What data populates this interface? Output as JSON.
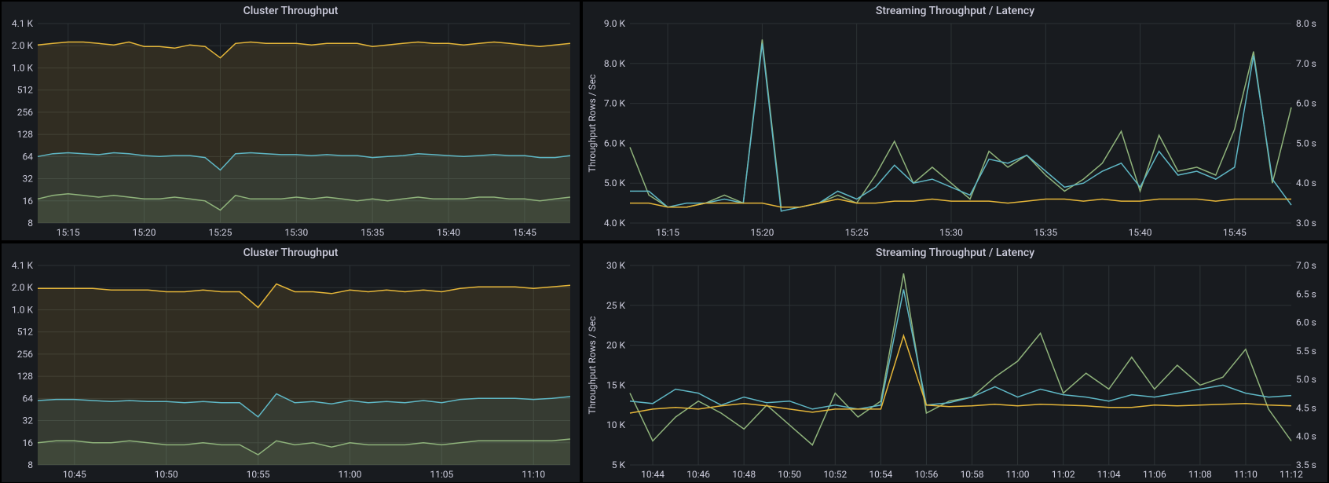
{
  "background": "#181b1f",
  "text_color": "#ccccdc",
  "title_fontsize": 14,
  "axis_fontsize": 12,
  "grid_color": "#2c3235",
  "y2_label": "Throughput Rows / Sec",
  "panels": {
    "cluster_top": {
      "title": "Cluster Throughput",
      "type": "area",
      "yscale": "log",
      "yticks": [
        8,
        16,
        32,
        64,
        128,
        256,
        512,
        1024,
        2048,
        4096
      ],
      "ytick_labels": [
        "8",
        "16",
        "32",
        "64",
        "128",
        "256",
        "512",
        "1.0 K",
        "2.0 K",
        "4.1 K"
      ],
      "xticks": [
        "15:15",
        "15:20",
        "15:25",
        "15:30",
        "15:35",
        "15:40",
        "15:45"
      ],
      "n": 36,
      "x_first_tick_idx": 2,
      "x_tick_stride": 5,
      "series": [
        {
          "color": "#e5b639",
          "fill": "rgba(229,182,57,0.12)",
          "data": [
            2100,
            2200,
            2300,
            2300,
            2200,
            2100,
            2300,
            2000,
            2000,
            1900,
            2100,
            2000,
            1400,
            2200,
            2300,
            2200,
            2200,
            2200,
            2100,
            2200,
            2200,
            2200,
            2000,
            2100,
            2200,
            2300,
            2200,
            2200,
            2100,
            2200,
            2300,
            2200,
            2100,
            2000,
            2100,
            2200
          ]
        },
        {
          "color": "#5fb7c5",
          "fill": "rgba(95,183,197,0.10)",
          "data": [
            64,
            70,
            72,
            70,
            68,
            72,
            70,
            66,
            64,
            66,
            66,
            62,
            42,
            70,
            72,
            70,
            68,
            68,
            66,
            68,
            66,
            66,
            62,
            64,
            66,
            70,
            68,
            66,
            64,
            66,
            68,
            66,
            66,
            62,
            62,
            66
          ]
        },
        {
          "color": "#8fb37b",
          "fill": "rgba(143,179,123,0.10)",
          "data": [
            17,
            19,
            20,
            19,
            18,
            19,
            18,
            17,
            17,
            18,
            17,
            16,
            12,
            19,
            17,
            17,
            17,
            18,
            17,
            18,
            17,
            16,
            17,
            16,
            17,
            18,
            17,
            17,
            17,
            18,
            18,
            17,
            17,
            16,
            17,
            18
          ]
        }
      ]
    },
    "stream_top": {
      "title": "Streaming Throughput / Latency",
      "type": "line",
      "yscale": "linear",
      "ylim": [
        4000,
        9000
      ],
      "yticks": [
        4000,
        5000,
        6000,
        7000,
        8000,
        9000
      ],
      "ytick_labels": [
        "4.0 K",
        "5.0 K",
        "6.0 K",
        "7.0 K",
        "8.0 K",
        "9.0 K"
      ],
      "y2ticks": [
        "3.0 s",
        "4.0 s",
        "5.0 s",
        "6.0 s",
        "7.0 s",
        "8.0 s"
      ],
      "xticks": [
        "15:15",
        "15:20",
        "15:25",
        "15:30",
        "15:35",
        "15:40",
        "15:45"
      ],
      "n": 36,
      "x_first_tick_idx": 2,
      "x_tick_stride": 5,
      "series": [
        {
          "color": "#8fb37b",
          "data": [
            5900,
            4700,
            4400,
            4400,
            4500,
            4700,
            4500,
            8600,
            4400,
            4400,
            4500,
            4700,
            4500,
            5200,
            6050,
            5000,
            5400,
            5000,
            4600,
            5800,
            5400,
            5700,
            5200,
            4800,
            5100,
            5500,
            6300,
            4800,
            6200,
            5300,
            5400,
            5200,
            6350,
            8300,
            5000,
            6900
          ]
        },
        {
          "color": "#5fb7c5",
          "data": [
            4800,
            4800,
            4400,
            4500,
            4500,
            4600,
            4500,
            8500,
            4300,
            4400,
            4500,
            4800,
            4600,
            4900,
            5450,
            5000,
            5100,
            4900,
            4700,
            5600,
            5500,
            5700,
            5300,
            4900,
            5000,
            5300,
            5500,
            4900,
            5800,
            5200,
            5300,
            5100,
            5400,
            8200,
            5100,
            4450
          ]
        },
        {
          "color": "#e5b639",
          "data": [
            4500,
            4500,
            4400,
            4400,
            4500,
            4500,
            4500,
            4500,
            4400,
            4400,
            4500,
            4600,
            4500,
            4500,
            4550,
            4550,
            4600,
            4550,
            4550,
            4550,
            4500,
            4550,
            4600,
            4600,
            4550,
            4600,
            4550,
            4550,
            4600,
            4600,
            4600,
            4550,
            4600,
            4600,
            4600,
            4600
          ]
        }
      ]
    },
    "cluster_bot": {
      "title": "Cluster Throughput",
      "type": "area",
      "yscale": "log",
      "yticks": [
        8,
        16,
        32,
        64,
        128,
        256,
        512,
        1024,
        2048,
        4096
      ],
      "ytick_labels": [
        "8",
        "16",
        "32",
        "64",
        "128",
        "256",
        "512",
        "1.0 K",
        "2.0 K",
        "4.1 K"
      ],
      "xticks": [
        "10:45",
        "10:50",
        "10:55",
        "11:00",
        "11:05",
        "11:10"
      ],
      "n": 30,
      "x_first_tick_idx": 2,
      "x_tick_stride": 5,
      "data_end_idx": 29,
      "series": [
        {
          "color": "#e5b639",
          "fill": "rgba(229,182,57,0.12)",
          "data": [
            2000,
            2000,
            2000,
            2000,
            1900,
            1900,
            1900,
            1800,
            1800,
            1900,
            1800,
            1800,
            1100,
            2300,
            1800,
            1800,
            1700,
            1900,
            1800,
            1900,
            1800,
            1900,
            1800,
            2000,
            2100,
            2100,
            2100,
            2000,
            2100,
            2200
          ]
        },
        {
          "color": "#5fb7c5",
          "fill": "rgba(95,183,197,0.10)",
          "data": [
            60,
            62,
            62,
            60,
            58,
            60,
            58,
            58,
            56,
            58,
            56,
            56,
            36,
            74,
            56,
            58,
            54,
            60,
            56,
            58,
            56,
            60,
            56,
            62,
            64,
            64,
            64,
            62,
            64,
            68
          ]
        },
        {
          "color": "#8fb37b",
          "fill": "rgba(143,179,123,0.10)",
          "data": [
            16,
            17,
            17,
            16,
            16,
            17,
            16,
            15,
            15,
            16,
            15,
            15,
            11,
            17,
            15,
            16,
            14,
            16,
            15,
            15,
            15,
            16,
            15,
            16,
            17,
            17,
            17,
            17,
            17,
            18
          ]
        }
      ]
    },
    "stream_bot": {
      "title": "Streaming Throughput / Latency",
      "type": "line",
      "yscale": "linear",
      "ylim": [
        5000,
        30000
      ],
      "yticks": [
        5000,
        10000,
        15000,
        20000,
        25000,
        30000
      ],
      "ytick_labels": [
        "5 K",
        "10 K",
        "15 K",
        "20 K",
        "25 K",
        "30 K"
      ],
      "y2ticks": [
        "3.5 s",
        "4.0 s",
        "4.5 s",
        "5.0 s",
        "5.5 s",
        "6.0 s",
        "6.5 s",
        "7.0 s"
      ],
      "xticks": [
        "10:44",
        "10:46",
        "10:48",
        "10:50",
        "10:52",
        "10:54",
        "10:56",
        "10:58",
        "11:00",
        "11:02",
        "11:04",
        "11:06",
        "11:08",
        "11:10"
      ],
      "n": 30,
      "x_first_tick_idx": 1,
      "x_tick_stride": 2,
      "extra_x_label": "11:12",
      "series": [
        {
          "color": "#8fb37b",
          "data": [
            14000,
            8000,
            11000,
            13000,
            11500,
            9500,
            12500,
            10000,
            7500,
            14000,
            11000,
            13000,
            29000,
            11500,
            13000,
            13500,
            16000,
            18000,
            21500,
            14000,
            16500,
            14500,
            18500,
            14500,
            17500,
            15000,
            16000,
            19500,
            12000,
            8000
          ]
        },
        {
          "color": "#5fb7c5",
          "data": [
            13000,
            12700,
            14500,
            14000,
            12500,
            13500,
            12800,
            13000,
            12000,
            12500,
            12000,
            12500,
            27000,
            12500,
            12800,
            13500,
            14800,
            13500,
            14500,
            13800,
            13500,
            13000,
            13800,
            13500,
            14000,
            14500,
            15000,
            14000,
            13500,
            13700
          ]
        },
        {
          "color": "#e5b639",
          "data": [
            11500,
            12000,
            12200,
            12000,
            12400,
            12700,
            12400,
            12000,
            11600,
            12000,
            12000,
            12000,
            21200,
            12500,
            12300,
            12400,
            12600,
            12400,
            12600,
            12500,
            12400,
            12200,
            12200,
            12500,
            12400,
            12500,
            12600,
            12700,
            12500,
            12400
          ]
        }
      ]
    }
  }
}
